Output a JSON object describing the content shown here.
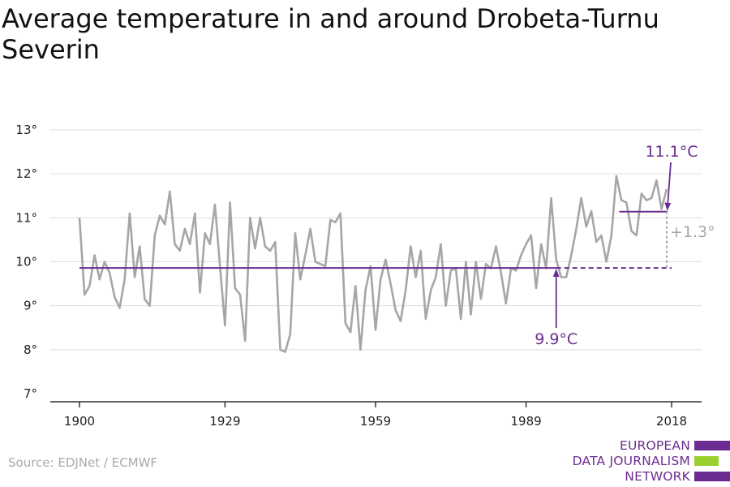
{
  "title": "Average temperature in and around Drobeta-Turnu Severin",
  "source": "Source: EDJNet / ECMWF",
  "logo": {
    "lines": [
      "EUROPEAN",
      "DATA JOURNALISM",
      "NETWORK"
    ],
    "colors": [
      "#6b2c91",
      "#9bd12e",
      "#6b2c91"
    ]
  },
  "colors": {
    "series": "#a6a6a6",
    "accent": "#6b2c91",
    "diff": "#a6a6a6",
    "grid": "#dddddd",
    "axis": "#333333"
  },
  "chart_data": {
    "type": "line",
    "title": "Average temperature in and around Drobeta-Turnu Severin",
    "xlabel": "",
    "ylabel": "",
    "xlim": [
      1900,
      2018
    ],
    "ylim": [
      7,
      13
    ],
    "grid": true,
    "x_ticks": [
      1900,
      1929,
      1959,
      1989,
      2018
    ],
    "x_tick_labels": [
      "1900",
      "1929",
      "1959",
      "1989",
      "2018"
    ],
    "y_ticks": [
      7,
      8,
      9,
      10,
      11,
      12,
      13
    ],
    "y_tick_labels": [
      "7°",
      "8°",
      "9°",
      "10°",
      "11°",
      "12°",
      "13°"
    ],
    "series": [
      {
        "x_start": 1900,
        "x_end": 2018,
        "values": [
          11.0,
          9.25,
          9.45,
          10.15,
          9.6,
          10.0,
          9.75,
          9.2,
          8.95,
          9.6,
          11.1,
          9.65,
          10.35,
          9.15,
          9.0,
          10.6,
          11.05,
          10.85,
          11.6,
          10.4,
          10.25,
          10.75,
          10.4,
          11.1,
          9.3,
          10.65,
          10.4,
          11.3,
          9.9,
          8.55,
          11.35,
          9.4,
          9.25,
          8.2,
          11.0,
          10.3,
          11.0,
          10.35,
          10.25,
          10.45,
          8.0,
          7.95,
          8.35,
          10.65,
          9.6,
          10.15,
          10.75,
          10.0,
          9.95,
          9.9,
          10.95,
          10.9,
          11.1,
          8.6,
          8.4,
          9.45,
          8.0,
          9.35,
          9.9,
          8.45,
          9.6,
          10.05,
          9.5,
          8.9,
          8.65,
          9.35,
          10.35,
          9.65,
          10.25,
          8.7,
          9.35,
          9.65,
          10.4,
          9.0,
          9.8,
          9.85,
          8.7,
          10.0,
          8.8,
          10.0,
          9.15,
          9.95,
          9.85,
          10.35,
          9.75,
          9.05,
          9.85,
          9.8,
          10.15,
          10.4,
          10.6,
          9.4,
          10.4,
          9.85,
          11.45,
          10.05,
          9.65,
          9.65,
          10.15,
          10.75,
          11.45,
          10.8,
          11.15,
          10.45,
          10.6,
          10.0,
          10.6,
          11.95,
          11.4,
          11.35,
          10.7,
          10.6,
          11.55,
          11.4,
          11.45,
          11.85,
          11.2,
          11.65
        ]
      }
    ],
    "reference_lines": [
      {
        "label": "9.9°C",
        "value": 9.86,
        "from": 1900,
        "to": 2018
      },
      {
        "label": "11.1°C",
        "value": 11.14,
        "from": 2010,
        "to": 2018
      }
    ],
    "difference_label": "+1.3°"
  }
}
